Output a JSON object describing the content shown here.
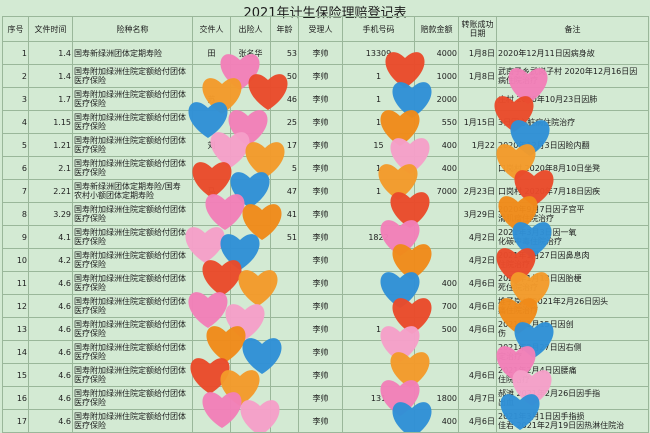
{
  "title": "2021年计生保险理赔登记表",
  "headers": [
    "序号",
    "文件时间",
    "险种名称",
    "交件人",
    "出险人",
    "年龄",
    "受理人",
    "手机号码",
    "赔款金额",
    "转账成功日期",
    "备注"
  ],
  "rows": [
    {
      "n": "1",
      "date": "1.4",
      "ins": "国寿新绿洲团体定期寿险",
      "sub": "",
      "giver": "田",
      "out": "张名华",
      "age": "53",
      "agent": "李帅",
      "phone": "13309",
      "amt": "4000",
      "paid": "1月8日",
      "note": "2020年12月11日因病身故"
    },
    {
      "n": "2",
      "date": "1.4",
      "ins": "国寿附加绿洲住院定额给付团体",
      "sub": "医疗保险",
      "giver": "",
      "out": "",
      "age": "50",
      "agent": "李帅",
      "phone": "1",
      "amt": "1000",
      "paid": "1月8日",
      "note": "武南子乡武岗子村  2020年12月16日因",
      "note2": "病住院治疗"
    },
    {
      "n": "3",
      "date": "1.7",
      "ins": "国寿附加绿洲住院定额给付团体",
      "sub": "医疗保险",
      "giver": "苏",
      "out": "",
      "age": "46",
      "agent": "李帅",
      "phone": "1",
      "amt": "2000",
      "paid": "",
      "note": "庄村  2020年10月23日因肺"
    },
    {
      "n": "4",
      "date": "1.15",
      "ins": "国寿附加绿洲住院定额给付团体",
      "sub": "医疗保险",
      "giver": "",
      "out": "",
      "age": "25",
      "agent": "李帅",
      "phone": "1",
      "amt": "550",
      "paid": "1月15日",
      "note": "3日因心脏病住院治疗"
    },
    {
      "n": "5",
      "date": "1.21",
      "ins": "国寿附加绿洲住院定额给付团体",
      "sub": "医疗保险",
      "giver": "刘",
      "out": "",
      "age": "17",
      "agent": "李帅",
      "phone": "15",
      "amt": "400",
      "paid": "1月22",
      "note": "2020年12月3日因睑内翻"
    },
    {
      "n": "6",
      "date": "2.1",
      "ins": "国寿附加绿洲住院定额给付团体",
      "sub": "医疗保险",
      "giver": "",
      "out": "",
      "age": "5",
      "agent": "李帅",
      "phone": "1",
      "amt": "400",
      "paid": "",
      "note": "口岗村  2020年8月10日坐凳"
    },
    {
      "n": "7",
      "date": "2.21",
      "ins": "国寿新绿洲团体定期寿险/国寿",
      "sub": "农村小额团体定期寿险",
      "giver": "马",
      "out": "",
      "age": "47",
      "agent": "李帅",
      "phone": "1",
      "amt": "7000",
      "paid": "2月23日",
      "note": "口岗村  2020年7月18日因疾"
    },
    {
      "n": "8",
      "date": "3.29",
      "ins": "国寿附加绿洲住院定额给付团体",
      "sub": "医疗保险",
      "giver": "",
      "out": "",
      "age": "41",
      "agent": "李帅",
      "phone": "",
      "amt": "",
      "paid": "3月29日",
      "note": "2020年9月7日因子宫平",
      "note2": "滑肌瘤住院治疗"
    },
    {
      "n": "9",
      "date": "4.1",
      "ins": "国寿附加绿洲住院定额给付团体",
      "sub": "医疗保险",
      "giver": "",
      "out": "",
      "age": "51",
      "agent": "李帅",
      "phone": "1822",
      "amt": "",
      "paid": "4月2日",
      "note": "2021年3月3日因一氧",
      "note2": "化碳中毒住院治疗"
    },
    {
      "n": "10",
      "date": "4.2",
      "ins": "国寿附加绿洲住院定额给付团体",
      "sub": "医疗保险",
      "giver": "",
      "out": "",
      "age": "",
      "agent": "李帅",
      "phone": "",
      "amt": "",
      "paid": "4月2日",
      "note": "2021年1月27日因鼻息肉",
      "note2": "住院治疗"
    },
    {
      "n": "11",
      "date": "4.6",
      "ins": "国寿附加绿洲住院定额给付团体",
      "sub": "医疗保险",
      "giver": "",
      "out": "",
      "age": "",
      "agent": "李帅",
      "phone": "",
      "amt": "400",
      "paid": "4月6日",
      "note": "2021年1月13日因胎梗",
      "note2": "死住院治疗"
    },
    {
      "n": "12",
      "date": "4.6",
      "ins": "国寿附加绿洲住院定额给付团体",
      "sub": "医疗保险",
      "giver": "",
      "out": "",
      "age": "",
      "agent": "李帅",
      "phone": "",
      "amt": "700",
      "paid": "4月6日",
      "note": "堆子岗村  2021年2月26日因头",
      "note2": "痛住院治疗"
    },
    {
      "n": "13",
      "date": "4.6",
      "ins": "国寿附加绿洲住院定额给付团体",
      "sub": "医疗保险",
      "giver": "",
      "out": "",
      "age": "",
      "agent": "李帅",
      "phone": "1",
      "amt": "500",
      "paid": "4月6日",
      "note": "2021年1月15日因创",
      "note2": "伤"
    },
    {
      "n": "14",
      "date": "4.6",
      "ins": "国寿附加绿洲住院定额给付团体",
      "sub": "医疗保险",
      "giver": "",
      "out": "",
      "age": "",
      "agent": "李帅",
      "phone": "",
      "amt": "",
      "paid": "",
      "note": "2021年2月27日因右侧",
      "note2": "定治疗"
    },
    {
      "n": "15",
      "date": "4.6",
      "ins": "国寿附加绿洲住院定额给付团体",
      "sub": "医疗保险",
      "giver": "",
      "out": "",
      "age": "",
      "agent": "李帅",
      "phone": "",
      "amt": "",
      "paid": "4月6日",
      "note": "2021年2月4日因腰痛",
      "note2": "住院治疗"
    },
    {
      "n": "16",
      "date": "4.6",
      "ins": "国寿附加绿洲住院定额给付团体",
      "sub": "医疗保险",
      "giver": "",
      "out": "",
      "age": "",
      "agent": "李帅",
      "phone": "131",
      "amt": "1800",
      "paid": "4月7日",
      "note": "郝滩  2021年2月26日因手指",
      "note2": "出血"
    },
    {
      "n": "17",
      "date": "4.6",
      "ins": "国寿附加绿洲住院定额给付团体",
      "sub": "医疗保险",
      "giver": "",
      "out": "",
      "age": "",
      "agent": "李帅",
      "phone": "",
      "amt": "400",
      "paid": "4月6日",
      "note": "2021年3月1日因手指损",
      "note2": "佳君  2021年2月19日因热淋住院治"
    }
  ],
  "sticker_colors": [
    "#f27fb8",
    "#f39a2a",
    "#e94a2a",
    "#2f8fd6",
    "#f59fc8",
    "#f08a1a"
  ]
}
